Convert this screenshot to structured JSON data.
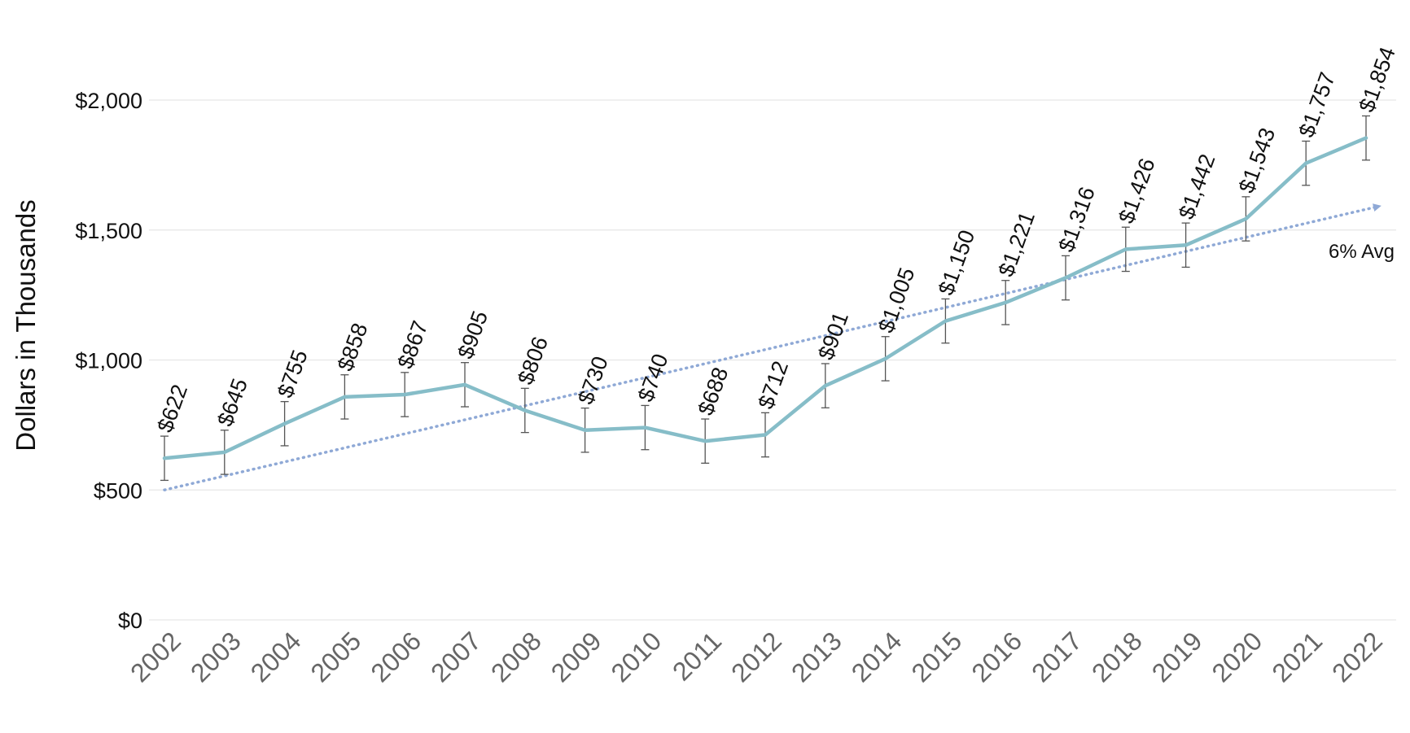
{
  "chart_data": {
    "type": "line",
    "ylabel": "Dollars in Thousands",
    "xlabel": "",
    "title": "",
    "categories": [
      "2002",
      "2003",
      "2004",
      "2005",
      "2006",
      "2007",
      "2008",
      "2009",
      "2010",
      "2011",
      "2012",
      "2013",
      "2014",
      "2015",
      "2016",
      "2017",
      "2018",
      "2019",
      "2020",
      "2021",
      "2022"
    ],
    "series": [
      {
        "values": [
          622,
          645,
          755,
          858,
          867,
          905,
          806,
          730,
          740,
          688,
          712,
          901,
          1005,
          1150,
          1221,
          1316,
          1426,
          1442,
          1543,
          1757,
          1854
        ],
        "labels": [
          "$622",
          "$645",
          "$755",
          "$858",
          "$867",
          "$905",
          "$806",
          "$730",
          "$740",
          "$688",
          "$712",
          "$901",
          "$1,005",
          "$1,150",
          "$1,221",
          "$1,316",
          "$1,426",
          "$1,442",
          "$1,543",
          "$1,757",
          "$1,854"
        ],
        "error_bar": 85,
        "color": "#86bdc8"
      }
    ],
    "trendline": {
      "label": "6% Avg",
      "start": 500,
      "end": 1590,
      "style": "dotted",
      "color": "#8fa9d6"
    },
    "yticks": [
      0,
      500,
      1000,
      1500,
      2000
    ],
    "ytick_labels": [
      "$0",
      "$500",
      "$1,000",
      "$1,500",
      "$2,000"
    ],
    "ylim": [
      0,
      2000
    ],
    "grid": true,
    "legend": "none"
  }
}
